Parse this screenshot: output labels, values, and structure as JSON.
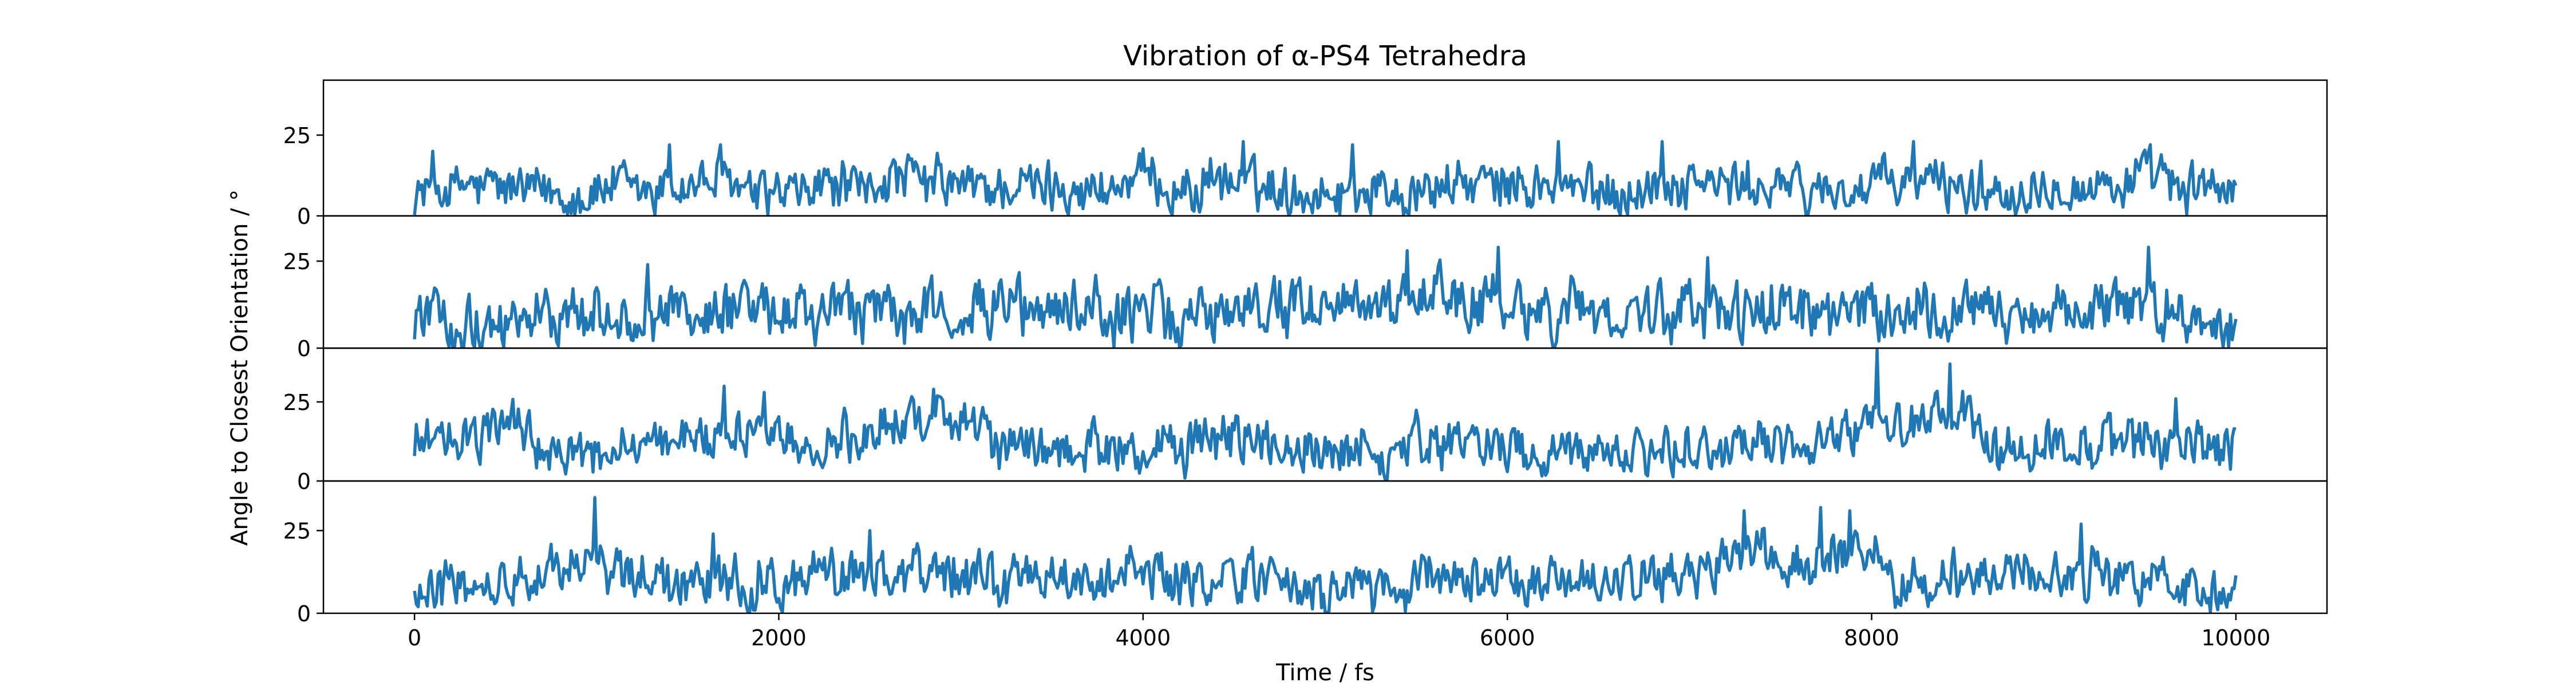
{
  "chart_data": {
    "type": "line",
    "title": "Vibration of α-PS4 Tetrahedra",
    "xlabel": "Time / fs",
    "ylabel": "Angle to Closest Orientation / °",
    "xlim": [
      -500,
      10500
    ],
    "x_ticks": [
      0,
      2000,
      4000,
      6000,
      8000,
      10000
    ],
    "y_ticks": [
      0,
      25
    ],
    "grid": false,
    "line_color": "#1f77b4",
    "x_range": [
      0,
      10000
    ],
    "subplots": [
      {
        "ylim": [
          0,
          42
        ],
        "profile": [
          [
            0,
            8
          ],
          [
            500,
            8
          ],
          [
            1000,
            8
          ],
          [
            1400,
            9
          ],
          [
            1600,
            10
          ],
          [
            2000,
            8
          ],
          [
            2500,
            10
          ],
          [
            3000,
            9
          ],
          [
            3500,
            8
          ],
          [
            4000,
            9
          ],
          [
            4600,
            10
          ],
          [
            5000,
            8
          ],
          [
            5700,
            10
          ],
          [
            6500,
            8
          ],
          [
            7000,
            10
          ],
          [
            7500,
            8
          ],
          [
            8000,
            8
          ],
          [
            8300,
            11
          ],
          [
            8600,
            9
          ],
          [
            9000,
            9
          ],
          [
            9500,
            10
          ],
          [
            10000,
            9
          ]
        ],
        "amplitude": 6.5,
        "peaks": [
          [
            100,
            20
          ],
          [
            1400,
            22
          ],
          [
            1680,
            22
          ],
          [
            4550,
            23
          ],
          [
            5150,
            22
          ],
          [
            6280,
            23
          ],
          [
            6850,
            23
          ],
          [
            8230,
            23
          ]
        ]
      },
      {
        "ylim": [
          0,
          38
        ],
        "profile": [
          [
            0,
            9
          ],
          [
            500,
            9
          ],
          [
            1000,
            9
          ],
          [
            1500,
            10
          ],
          [
            2000,
            9
          ],
          [
            2500,
            10
          ],
          [
            3000,
            10
          ],
          [
            3500,
            11
          ],
          [
            4000,
            9
          ],
          [
            4600,
            11
          ],
          [
            5000,
            14
          ],
          [
            5500,
            13
          ],
          [
            6000,
            12
          ],
          [
            6500,
            10
          ],
          [
            7000,
            11
          ],
          [
            7500,
            10
          ],
          [
            8000,
            10
          ],
          [
            8500,
            11
          ],
          [
            9000,
            11
          ],
          [
            9500,
            13
          ],
          [
            10000,
            9
          ]
        ],
        "amplitude": 7,
        "peaks": [
          [
            1280,
            24
          ],
          [
            5450,
            28
          ],
          [
            5950,
            29
          ],
          [
            7100,
            26
          ],
          [
            9520,
            29
          ]
        ]
      },
      {
        "ylim": [
          0,
          42
        ],
        "profile": [
          [
            0,
            12
          ],
          [
            300,
            11
          ],
          [
            500,
            18
          ],
          [
            650,
            16
          ],
          [
            700,
            6
          ],
          [
            1000,
            8
          ],
          [
            1400,
            15
          ],
          [
            1900,
            16
          ],
          [
            2200,
            12
          ],
          [
            2600,
            16
          ],
          [
            2900,
            22
          ],
          [
            3200,
            10
          ],
          [
            3800,
            10
          ],
          [
            4600,
            12
          ],
          [
            5000,
            9
          ],
          [
            5500,
            10
          ],
          [
            6000,
            10
          ],
          [
            6500,
            9
          ],
          [
            7000,
            11
          ],
          [
            7500,
            10
          ],
          [
            7900,
            14
          ],
          [
            8000,
            22
          ],
          [
            8200,
            16
          ],
          [
            8450,
            24
          ],
          [
            8700,
            10
          ],
          [
            9000,
            12
          ],
          [
            9300,
            14
          ],
          [
            9600,
            12
          ],
          [
            10000,
            11
          ]
        ],
        "amplitude": 6.5,
        "peaks": [
          [
            1700,
            30
          ],
          [
            1920,
            28
          ],
          [
            2850,
            29
          ],
          [
            8030,
            42
          ],
          [
            8430,
            37
          ],
          [
            9670,
            26
          ]
        ]
      },
      {
        "ylim": [
          0,
          40
        ],
        "profile": [
          [
            0,
            9
          ],
          [
            500,
            10
          ],
          [
            900,
            14
          ],
          [
            1100,
            12
          ],
          [
            1500,
            10
          ],
          [
            2000,
            10
          ],
          [
            2500,
            14
          ],
          [
            3000,
            11
          ],
          [
            3500,
            11
          ],
          [
            4000,
            11
          ],
          [
            4500,
            10
          ],
          [
            5000,
            9
          ],
          [
            5500,
            8
          ],
          [
            6000,
            10
          ],
          [
            6500,
            9
          ],
          [
            7000,
            13
          ],
          [
            7300,
            18
          ],
          [
            7600,
            15
          ],
          [
            7900,
            22
          ],
          [
            8100,
            10
          ],
          [
            8500,
            11
          ],
          [
            9000,
            12
          ],
          [
            9500,
            10
          ],
          [
            10000,
            9
          ]
        ],
        "amplitude": 6.5,
        "peaks": [
          [
            990,
            35
          ],
          [
            1640,
            24
          ],
          [
            2500,
            25
          ],
          [
            7300,
            31
          ],
          [
            7720,
            32
          ],
          [
            7880,
            31
          ],
          [
            9150,
            27
          ]
        ]
      }
    ]
  }
}
